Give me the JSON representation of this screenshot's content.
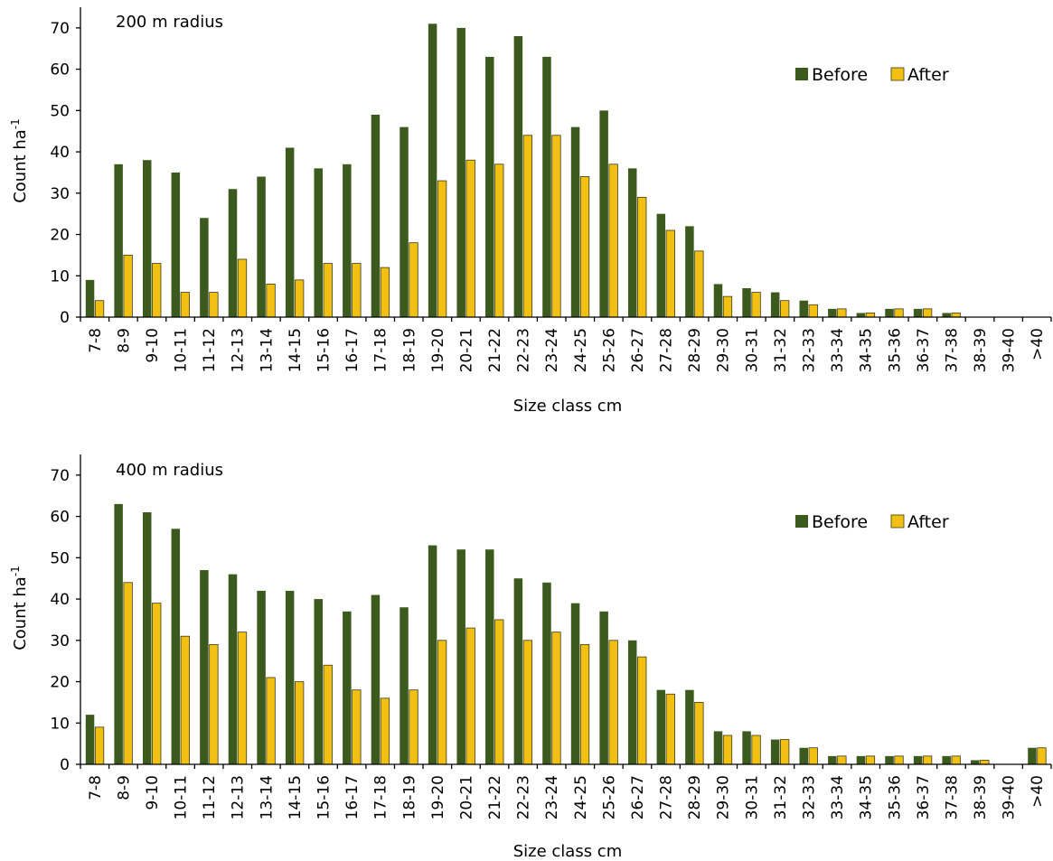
{
  "chart_data": [
    {
      "type": "bar",
      "title": "200 m radius",
      "xlabel": "Size class cm",
      "ylabel": "Count ha",
      "ylabel_sup": "-1",
      "ylim": [
        0,
        75
      ],
      "yticks": [
        0,
        10,
        20,
        30,
        40,
        50,
        60,
        70
      ],
      "legend_position": "top-right",
      "categories": [
        "7-8",
        "8-9",
        "9-10",
        "10-11",
        "11-12",
        "12-13",
        "13-14",
        "14-15",
        "15-16",
        "16-17",
        "17-18",
        "18-19",
        "19-20",
        "20-21",
        "21-22",
        "22-23",
        "23-24",
        "24-25",
        "25-26",
        "26-27",
        "27-28",
        "28-29",
        "29-30",
        "30-31",
        "31-32",
        "32-33",
        "33-34",
        "34-35",
        "35-36",
        "36-37",
        "37-38",
        "38-39",
        "39-40",
        ">40"
      ],
      "series": [
        {
          "name": "Before",
          "color": "#3d5a1e",
          "values": [
            9,
            37,
            38,
            35,
            24,
            31,
            34,
            41,
            36,
            37,
            49,
            46,
            71,
            70,
            63,
            68,
            63,
            46,
            50,
            36,
            25,
            22,
            8,
            7,
            6,
            4,
            2,
            1,
            2,
            2,
            1,
            0,
            0,
            0
          ]
        },
        {
          "name": "After",
          "color": "#f2c012",
          "values": [
            4,
            15,
            13,
            6,
            6,
            14,
            8,
            9,
            13,
            13,
            12,
            18,
            33,
            38,
            37,
            44,
            44,
            34,
            37,
            29,
            21,
            16,
            5,
            6,
            4,
            3,
            2,
            1,
            2,
            2,
            1,
            0,
            0,
            0
          ]
        }
      ]
    },
    {
      "type": "bar",
      "title": "400 m radius",
      "xlabel": "Size class cm",
      "ylabel": "Count ha",
      "ylabel_sup": "-1",
      "ylim": [
        0,
        75
      ],
      "yticks": [
        0,
        10,
        20,
        30,
        40,
        50,
        60,
        70
      ],
      "legend_position": "top-right",
      "categories": [
        "7-8",
        "8-9",
        "9-10",
        "10-11",
        "11-12",
        "12-13",
        "13-14",
        "14-15",
        "15-16",
        "16-17",
        "17-18",
        "18-19",
        "19-20",
        "20-21",
        "21-22",
        "22-23",
        "23-24",
        "24-25",
        "25-26",
        "26-27",
        "27-28",
        "28-29",
        "29-30",
        "30-31",
        "31-32",
        "32-33",
        "33-34",
        "34-35",
        "35-36",
        "36-37",
        "37-38",
        "38-39",
        "39-40",
        ">40"
      ],
      "series": [
        {
          "name": "Before",
          "color": "#3d5a1e",
          "values": [
            12,
            63,
            61,
            57,
            47,
            46,
            42,
            42,
            40,
            37,
            41,
            38,
            53,
            52,
            52,
            45,
            44,
            39,
            37,
            30,
            18,
            18,
            8,
            8,
            6,
            4,
            2,
            2,
            2,
            2,
            2,
            1,
            0,
            4
          ]
        },
        {
          "name": "After",
          "color": "#f2c012",
          "values": [
            9,
            44,
            39,
            31,
            29,
            32,
            21,
            20,
            24,
            18,
            16,
            18,
            30,
            33,
            35,
            30,
            32,
            29,
            30,
            26,
            17,
            15,
            7,
            7,
            6,
            4,
            2,
            2,
            2,
            2,
            2,
            1,
            0,
            4
          ]
        }
      ]
    }
  ]
}
